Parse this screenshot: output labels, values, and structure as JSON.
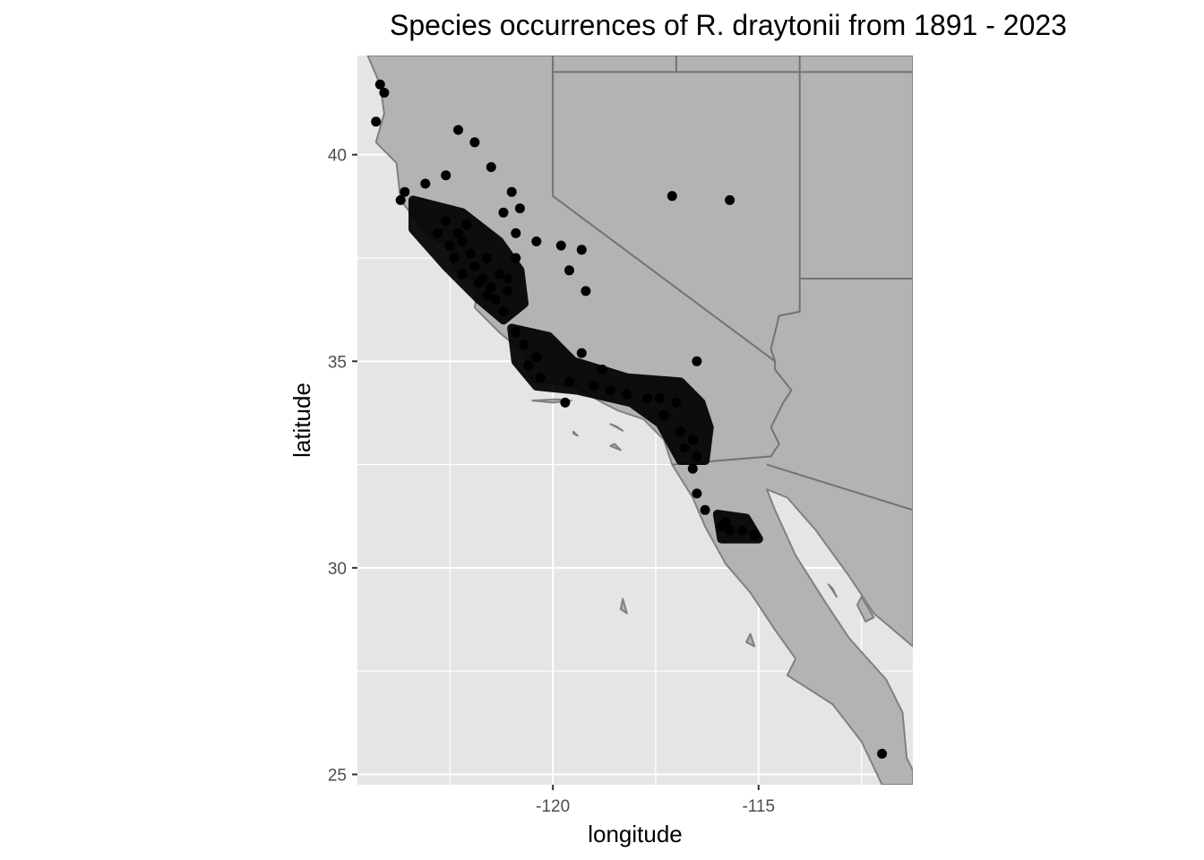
{
  "chart_data": {
    "type": "scatter",
    "title": "Species occurrences of R. draytonii from 1891 - 2023",
    "xlabel": "longitude",
    "ylabel": "latitude",
    "xlim": [
      -124.75,
      -111.25
    ],
    "ylim": [
      24.75,
      42.4
    ],
    "x_ticks": [
      {
        "value": -120,
        "label": "-120"
      },
      {
        "value": -115,
        "label": "-115"
      }
    ],
    "y_ticks": [
      {
        "value": 25,
        "label": "25"
      },
      {
        "value": 30,
        "label": "30"
      },
      {
        "value": 35,
        "label": "35"
      },
      {
        "value": 40,
        "label": "40"
      }
    ],
    "grid": true,
    "legend": "none",
    "colors": {
      "panel": "#e5e5e5",
      "land": "#b3b3b3",
      "border": "#737373",
      "coast": "#808080",
      "grid_major": "#ffffff",
      "grid_minor": "#f2f2f2",
      "point": "#000000",
      "tick_text": "#4d4d4d"
    },
    "map_layers": {
      "land_areas": [
        [
          [
            -124.5,
            42.4
          ],
          [
            -111.25,
            42.4
          ],
          [
            -111.25,
            28.1
          ],
          [
            -112.2,
            28.9
          ],
          [
            -112.8,
            29.8
          ],
          [
            -113.6,
            30.9
          ],
          [
            -114.3,
            31.7
          ],
          [
            -114.8,
            31.9
          ],
          [
            -114.6,
            31.4
          ],
          [
            -114.1,
            30.3
          ],
          [
            -113.4,
            29.2
          ],
          [
            -112.8,
            28.3
          ],
          [
            -111.9,
            27.3
          ],
          [
            -111.5,
            26.5
          ],
          [
            -111.4,
            25.4
          ],
          [
            -111.25,
            25.1
          ],
          [
            -111.25,
            24.75
          ],
          [
            -112.0,
            24.75
          ],
          [
            -112.5,
            25.8
          ],
          [
            -113.2,
            26.7
          ],
          [
            -114.3,
            27.4
          ],
          [
            -114.1,
            27.8
          ],
          [
            -114.6,
            28.5
          ],
          [
            -115.2,
            29.4
          ],
          [
            -115.8,
            30.1
          ],
          [
            -116.3,
            31.0
          ],
          [
            -116.6,
            31.7
          ],
          [
            -117.1,
            32.5
          ],
          [
            -117.3,
            33.1
          ],
          [
            -117.8,
            33.6
          ],
          [
            -118.4,
            33.8
          ],
          [
            -118.8,
            34.0
          ],
          [
            -119.5,
            34.4
          ],
          [
            -120.5,
            34.5
          ],
          [
            -120.7,
            35.2
          ],
          [
            -121.3,
            35.7
          ],
          [
            -121.9,
            36.3
          ],
          [
            -121.8,
            36.9
          ],
          [
            -122.4,
            37.2
          ],
          [
            -122.5,
            37.8
          ],
          [
            -123.0,
            38.0
          ],
          [
            -123.7,
            38.9
          ],
          [
            -123.8,
            39.8
          ],
          [
            -124.3,
            40.3
          ],
          [
            -124.1,
            41.0
          ],
          [
            -124.2,
            41.7
          ],
          [
            -124.5,
            42.4
          ]
        ]
      ],
      "water_areas": [],
      "islands": [
        [
          [
            -120.5,
            34.05
          ],
          [
            -120.0,
            34.0
          ],
          [
            -119.55,
            34.05
          ],
          [
            -119.9,
            34.08
          ]
        ],
        [
          [
            -119.5,
            33.3
          ],
          [
            -119.4,
            33.2
          ],
          [
            -119.5,
            33.25
          ]
        ],
        [
          [
            -118.6,
            33.48
          ],
          [
            -118.3,
            33.32
          ],
          [
            -118.45,
            33.42
          ]
        ],
        [
          [
            -118.5,
            33.0
          ],
          [
            -118.35,
            32.85
          ],
          [
            -118.6,
            32.95
          ]
        ],
        [
          [
            -118.3,
            29.25
          ],
          [
            -118.2,
            28.9
          ],
          [
            -118.35,
            29.0
          ]
        ],
        [
          [
            -115.2,
            28.4
          ],
          [
            -115.1,
            28.1
          ],
          [
            -115.3,
            28.2
          ]
        ],
        [
          [
            -112.5,
            29.3
          ],
          [
            -112.2,
            28.8
          ],
          [
            -112.4,
            28.7
          ],
          [
            -112.6,
            29.1
          ]
        ],
        [
          [
            -113.3,
            29.6
          ],
          [
            -113.1,
            29.3
          ],
          [
            -113.2,
            29.5
          ]
        ]
      ],
      "borders": [
        [
          [
            -120.0,
            42.4
          ],
          [
            -120.0,
            39.0
          ],
          [
            -114.6,
            35.0
          ],
          [
            -114.6,
            34.8
          ],
          [
            -114.2,
            34.3
          ],
          [
            -114.4,
            34.0
          ],
          [
            -114.7,
            33.4
          ],
          [
            -114.5,
            33.0
          ],
          [
            -114.7,
            32.7
          ],
          [
            -117.1,
            32.5
          ]
        ],
        [
          [
            -114.8,
            32.5
          ],
          [
            -111.25,
            31.4
          ]
        ],
        [
          [
            -117.0,
            42.4
          ],
          [
            -117.0,
            42.0
          ]
        ],
        [
          [
            -120.0,
            42.0
          ],
          [
            -111.25,
            42.0
          ]
        ],
        [
          [
            -114.0,
            42.4
          ],
          [
            -114.0,
            36.2
          ],
          [
            -114.5,
            36.1
          ],
          [
            -114.7,
            35.3
          ],
          [
            -114.6,
            35.0
          ]
        ],
        [
          [
            -114.0,
            37.0
          ],
          [
            -111.25,
            37.0
          ]
        ]
      ]
    },
    "points": [
      [
        -124.2,
        41.7
      ],
      [
        -124.1,
        41.5
      ],
      [
        -124.3,
        40.8
      ],
      [
        -122.3,
        40.6
      ],
      [
        -121.9,
        40.3
      ],
      [
        -121.5,
        39.7
      ],
      [
        -123.1,
        39.3
      ],
      [
        -122.6,
        39.5
      ],
      [
        -123.6,
        39.1
      ],
      [
        -123.7,
        38.9
      ],
      [
        -121.0,
        39.1
      ],
      [
        -120.8,
        38.7
      ],
      [
        -120.9,
        38.1
      ],
      [
        -121.2,
        38.6
      ],
      [
        -117.1,
        39.0
      ],
      [
        -115.7,
        38.9
      ],
      [
        -119.8,
        37.8
      ],
      [
        -119.3,
        37.7
      ],
      [
        -119.6,
        37.2
      ],
      [
        -119.2,
        36.7
      ],
      [
        -120.4,
        37.9
      ],
      [
        -120.9,
        37.5
      ],
      [
        -122.1,
        38.3
      ],
      [
        -122.6,
        38.4
      ],
      [
        -122.2,
        37.9
      ],
      [
        -122.0,
        37.6
      ],
      [
        -121.9,
        37.3
      ],
      [
        -121.7,
        37.0
      ],
      [
        -122.2,
        37.1
      ],
      [
        -121.5,
        36.8
      ],
      [
        -121.4,
        36.5
      ],
      [
        -121.1,
        36.7
      ],
      [
        -122.4,
        37.5
      ],
      [
        -122.5,
        37.8
      ],
      [
        -122.8,
        38.1
      ],
      [
        -122.3,
        38.1
      ],
      [
        -121.6,
        37.5
      ],
      [
        -121.3,
        37.1
      ],
      [
        -121.1,
        37.0
      ],
      [
        -121.6,
        36.6
      ],
      [
        -121.8,
        36.9
      ],
      [
        -121.2,
        36.2
      ],
      [
        -120.9,
        35.7
      ],
      [
        -120.7,
        35.4
      ],
      [
        -120.4,
        35.1
      ],
      [
        -120.6,
        34.9
      ],
      [
        -120.3,
        34.6
      ],
      [
        -119.6,
        34.5
      ],
      [
        -119.0,
        34.4
      ],
      [
        -118.6,
        34.3
      ],
      [
        -118.2,
        34.2
      ],
      [
        -117.7,
        34.1
      ],
      [
        -117.4,
        34.1
      ],
      [
        -117.0,
        34.0
      ],
      [
        -117.3,
        33.7
      ],
      [
        -116.9,
        33.3
      ],
      [
        -116.6,
        33.1
      ],
      [
        -116.8,
        32.9
      ],
      [
        -116.5,
        32.7
      ],
      [
        -116.6,
        32.4
      ],
      [
        -119.3,
        35.2
      ],
      [
        -118.8,
        34.8
      ],
      [
        -116.5,
        35.0
      ],
      [
        -119.7,
        34.0
      ],
      [
        -116.5,
        31.8
      ],
      [
        -116.3,
        31.4
      ],
      [
        -115.9,
        31.0
      ],
      [
        -115.7,
        30.9
      ],
      [
        -115.4,
        30.9
      ],
      [
        -115.1,
        30.8
      ],
      [
        -115.8,
        31.1
      ],
      [
        -112.0,
        25.5
      ]
    ],
    "cluster_areas": [
      [
        [
          -123.4,
          38.9
        ],
        [
          -122.2,
          38.6
        ],
        [
          -121.3,
          37.9
        ],
        [
          -120.8,
          37.2
        ],
        [
          -120.7,
          36.4
        ],
        [
          -121.2,
          36.0
        ],
        [
          -121.8,
          36.5
        ],
        [
          -122.6,
          37.3
        ],
        [
          -123.4,
          38.2
        ]
      ],
      [
        [
          -121.0,
          35.8
        ],
        [
          -120.1,
          35.6
        ],
        [
          -119.5,
          35.0
        ],
        [
          -118.2,
          34.6
        ],
        [
          -116.9,
          34.5
        ],
        [
          -116.4,
          34.0
        ],
        [
          -116.2,
          33.4
        ],
        [
          -116.3,
          32.6
        ],
        [
          -116.9,
          32.6
        ],
        [
          -117.4,
          33.5
        ],
        [
          -118.1,
          34.0
        ],
        [
          -119.4,
          34.3
        ],
        [
          -120.4,
          34.4
        ],
        [
          -120.9,
          35.0
        ]
      ],
      [
        [
          -116.0,
          31.3
        ],
        [
          -115.3,
          31.2
        ],
        [
          -115.0,
          30.7
        ],
        [
          -115.9,
          30.7
        ]
      ]
    ]
  }
}
